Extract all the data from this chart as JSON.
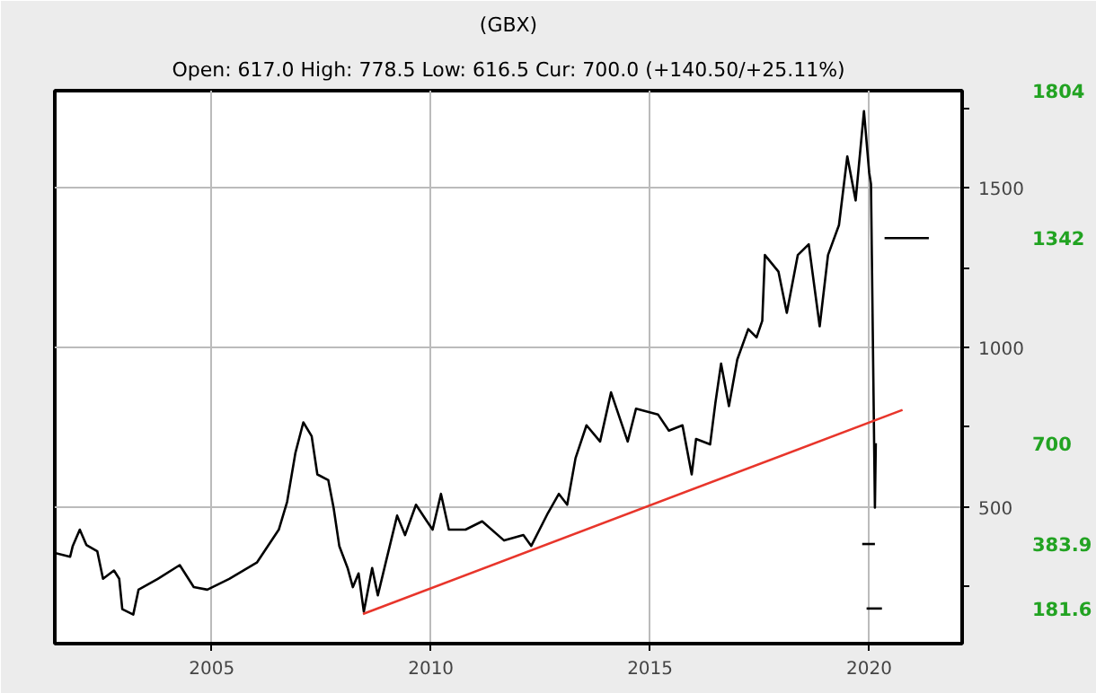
{
  "chart_data": {
    "type": "line",
    "title": "(GBX)",
    "subtitle": "Open: 617.0 High: 778.5 Low: 616.5 Cur: 700.0 (+140.50/+25.11%)",
    "series": [
      {
        "color": "#000000",
        "x": [
          2001.42,
          2001.77,
          2001.83,
          2001.99,
          2002.14,
          2002.39,
          2002.52,
          2002.77,
          2002.89,
          2002.96,
          2003.21,
          2003.33,
          2003.77,
          2004.27,
          2004.59,
          2004.9,
          2005.4,
          2006.03,
          2006.53,
          2006.72,
          2006.91,
          2007.09,
          2007.28,
          2007.41,
          2007.66,
          2007.78,
          2007.91,
          2008.1,
          2008.22,
          2008.35,
          2008.47,
          2008.66,
          2008.79,
          2008.97,
          2009.23,
          2009.41,
          2009.66,
          2009.91,
          2010.04,
          2010.23,
          2010.41,
          2010.79,
          2011.17,
          2011.67,
          2012.11,
          2012.29,
          2012.67,
          2012.92,
          2013.11,
          2013.3,
          2013.55,
          2013.86,
          2014.11,
          2014.49,
          2014.68,
          2015.18,
          2015.43,
          2015.74,
          2015.95,
          2016.05,
          2016.37,
          2016.49,
          2016.62,
          2016.8,
          2016.99,
          2017.24,
          2017.43,
          2017.56,
          2017.62,
          2017.93,
          2018.12,
          2018.37,
          2018.62,
          2018.87,
          2019.06,
          2019.31,
          2019.5,
          2019.69,
          2019.88,
          2020.0,
          2020.04,
          2020.06,
          2020.13,
          2020.15
        ],
        "values": [
          356,
          344,
          378,
          429,
          381,
          361,
          275,
          301,
          275,
          180,
          163,
          241,
          275,
          318,
          249,
          241,
          275,
          326,
          429,
          516,
          670,
          765,
          722,
          602,
          584,
          498,
          378,
          309,
          249,
          292,
          172,
          309,
          223,
          326,
          473,
          412,
          507,
          455,
          429,
          541,
          429,
          429,
          455,
          395,
          412,
          378,
          481,
          541,
          507,
          653,
          756,
          705,
          859,
          705,
          808,
          790,
          739,
          756,
          602,
          713,
          696,
          825,
          949,
          816,
          962,
          1057,
          1031,
          1083,
          1289,
          1237,
          1108,
          1289,
          1323,
          1066,
          1289,
          1383,
          1598,
          1460,
          1740,
          1547,
          1512,
          1289,
          498,
          700
        ]
      },
      {
        "color": "#e8352b",
        "x": [
          2008.45,
          2020.76
        ],
        "values": [
          165,
          804
        ]
      },
      {
        "color": "#000000",
        "x": [
          2020.35,
          2021.36
        ],
        "values": [
          1342,
          1342
        ]
      },
      {
        "color": "#000000",
        "x": [
          2019.84,
          2020.13
        ],
        "values": [
          384,
          384
        ]
      },
      {
        "color": "#000000",
        "x": [
          2019.94,
          2020.29
        ],
        "values": [
          182,
          182
        ]
      }
    ],
    "y2lim": [
      72,
      1804
    ],
    "y2ticks": [
      1804,
      1342,
      700,
      383.9,
      181.6
    ],
    "xlim": [
      2001.42,
      2022.12
    ],
    "xticks": [
      2005,
      2010,
      2015,
      2020
    ],
    "ylim": [
      72,
      1804
    ],
    "yticks": [
      {
        "value": 250,
        "label": null
      },
      500,
      {
        "value": 750,
        "label": null
      },
      1000,
      {
        "value": 1250,
        "label": null
      },
      1500,
      {
        "value": 1750,
        "label": null
      }
    ],
    "grid": true,
    "line_style": "solid"
  }
}
